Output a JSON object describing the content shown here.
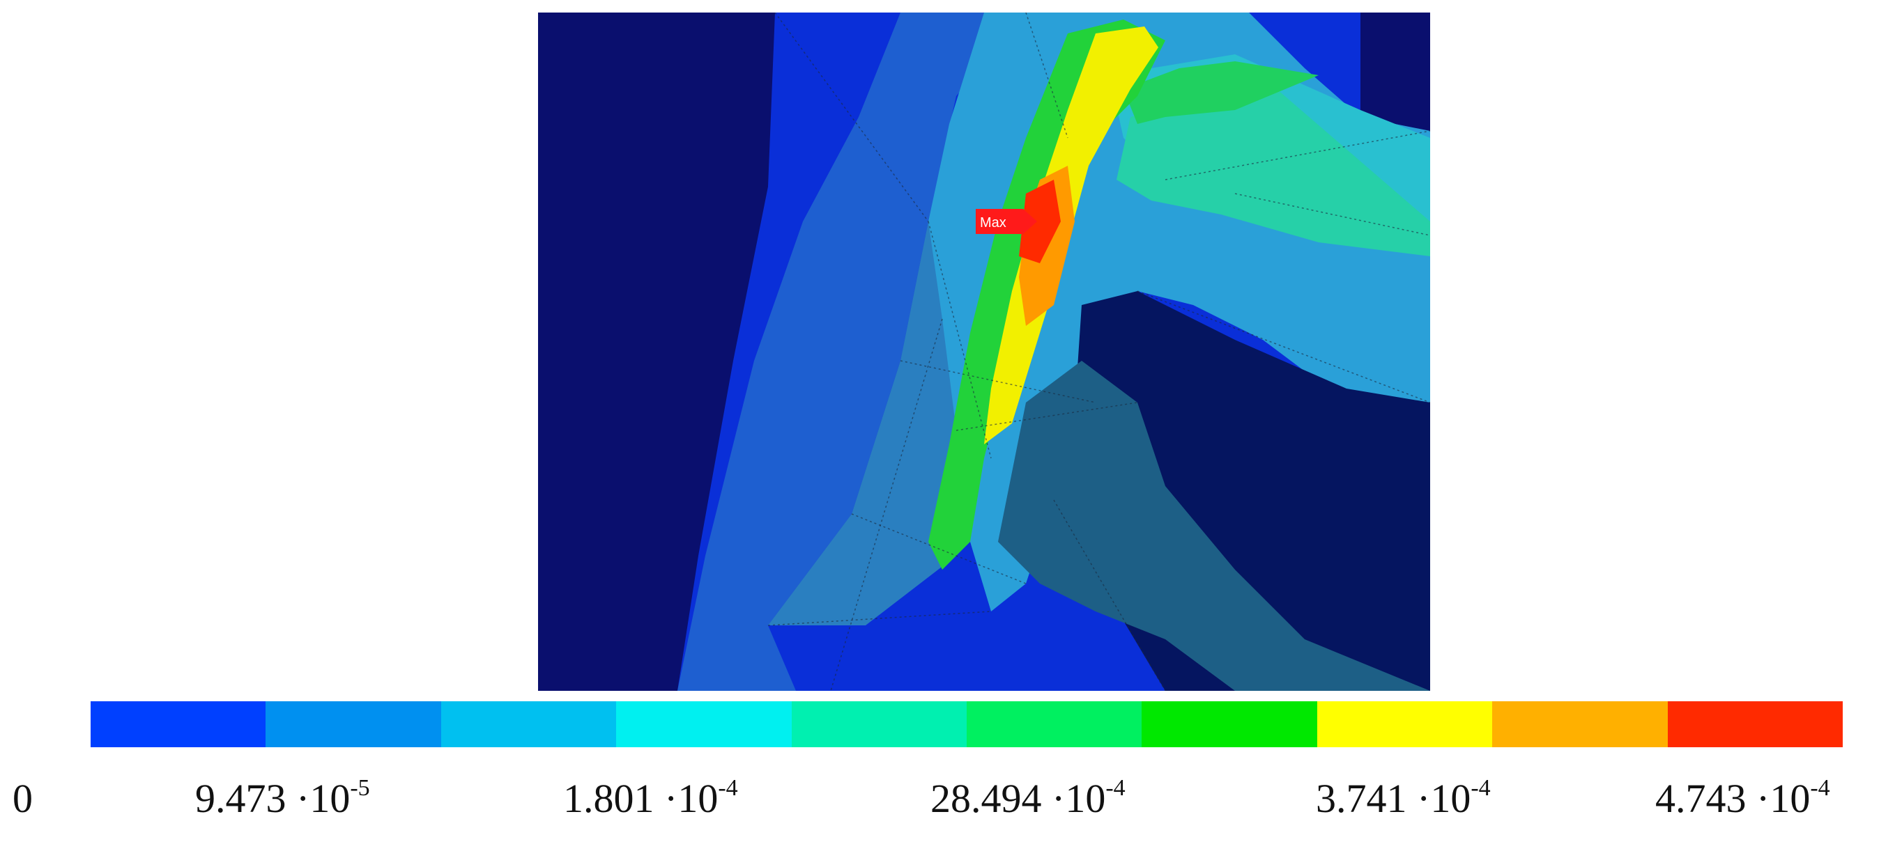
{
  "figure": {
    "max_marker": "Max"
  },
  "legend": {
    "colors": [
      "#0040ff",
      "#0090f0",
      "#00c0f0",
      "#00f0f0",
      "#00f0b0",
      "#00f060",
      "#00e800",
      "#ffff00",
      "#ffb000",
      "#ff2a00"
    ],
    "ticks": [
      {
        "base": "0",
        "exp": ""
      },
      {
        "base": "9.473 ·10",
        "exp": "-5"
      },
      {
        "base": "1.801 ·10",
        "exp": "-4"
      },
      {
        "base": "28.494 ·10",
        "exp": "-4"
      },
      {
        "base": "3.741 ·10",
        "exp": "-4"
      },
      {
        "base": "4.743 ·10",
        "exp": "-4"
      }
    ]
  }
}
